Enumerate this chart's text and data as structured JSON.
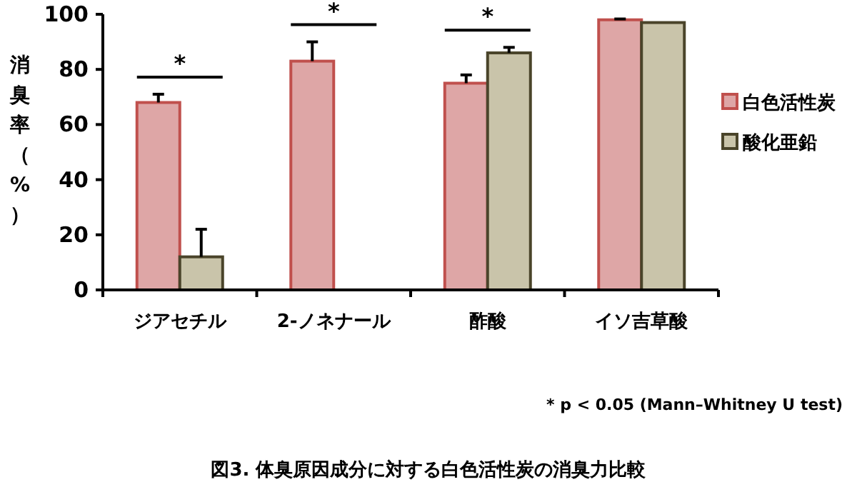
{
  "chart_data": {
    "type": "bar",
    "title": "図3. 体臭原因成分に対する白色活性炭の消臭力比較",
    "ylabel": "消臭率（%）",
    "categories": [
      "ジアセチル",
      "2-ノネナール",
      "酢酸",
      "イソ吉草酸"
    ],
    "series": [
      {
        "name": "白色活性炭",
        "color": "#dea6a6",
        "values": [
          68,
          83,
          75,
          98
        ],
        "errors": [
          [
            68,
            71
          ],
          [
            83,
            90
          ],
          [
            75,
            78
          ],
          [
            98,
            98.3
          ]
        ]
      },
      {
        "name": "酸化亜鉛",
        "color": "#c9c4aa",
        "values": [
          12,
          null,
          86,
          97
        ],
        "errors": [
          [
            12,
            22
          ],
          null,
          [
            86,
            88
          ],
          null
        ]
      }
    ],
    "ylim": [
      0,
      100
    ],
    "yticks": [
      0,
      20,
      40,
      60,
      80,
      100
    ],
    "grid": false,
    "legend": "right",
    "annotations": [
      "*",
      "*",
      "*",
      "* p < 0.05 (Mann–Whitney U test)"
    ]
  }
}
